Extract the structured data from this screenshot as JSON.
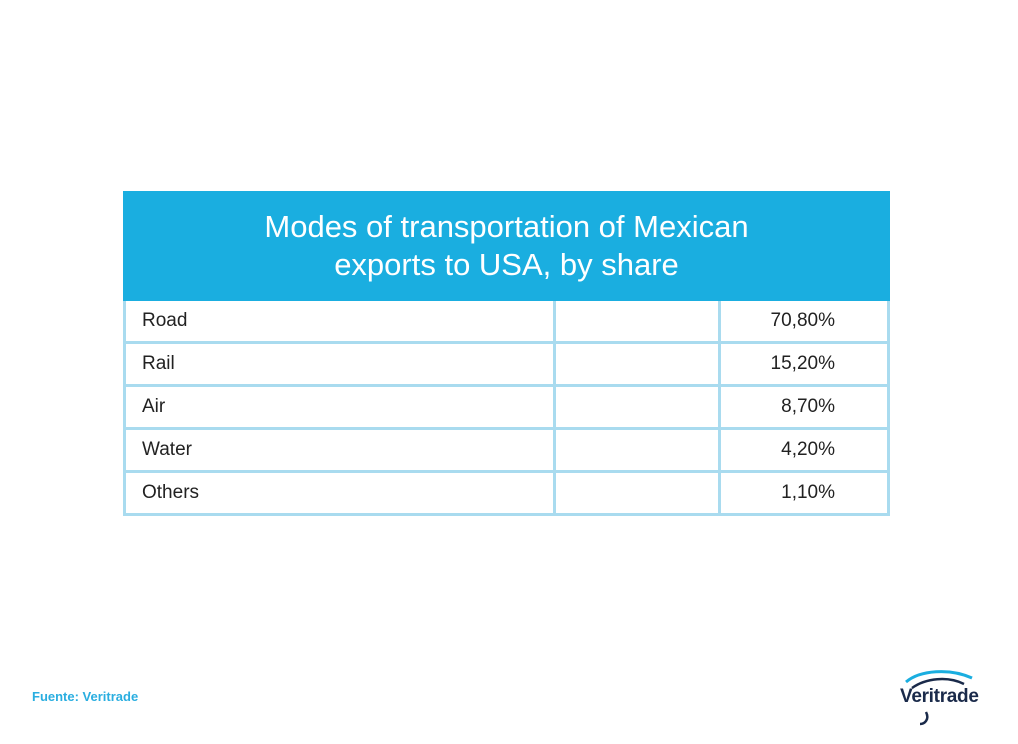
{
  "chart_data": {
    "type": "table",
    "title_line1": "Modes of transportation of Mexican",
    "title_line2": "exports to USA, by share",
    "rows": [
      {
        "label": "Road",
        "value": "70,80%"
      },
      {
        "label": "Rail",
        "value": "15,20%"
      },
      {
        "label": "Air",
        "value": "8,70%"
      },
      {
        "label": "Water",
        "value": "4,20%"
      },
      {
        "label": "Others",
        "value": "1,10%"
      }
    ],
    "values_numeric": [
      70.8,
      15.2,
      8.7,
      4.2,
      1.1
    ]
  },
  "footer": {
    "source": "Fuente: Veritrade"
  },
  "logo": {
    "text": "Veritrade"
  },
  "colors": {
    "header": "#1aaee0",
    "grid": "#a9dbef",
    "source": "#2aaee0",
    "logo": "#1a2a4a"
  }
}
